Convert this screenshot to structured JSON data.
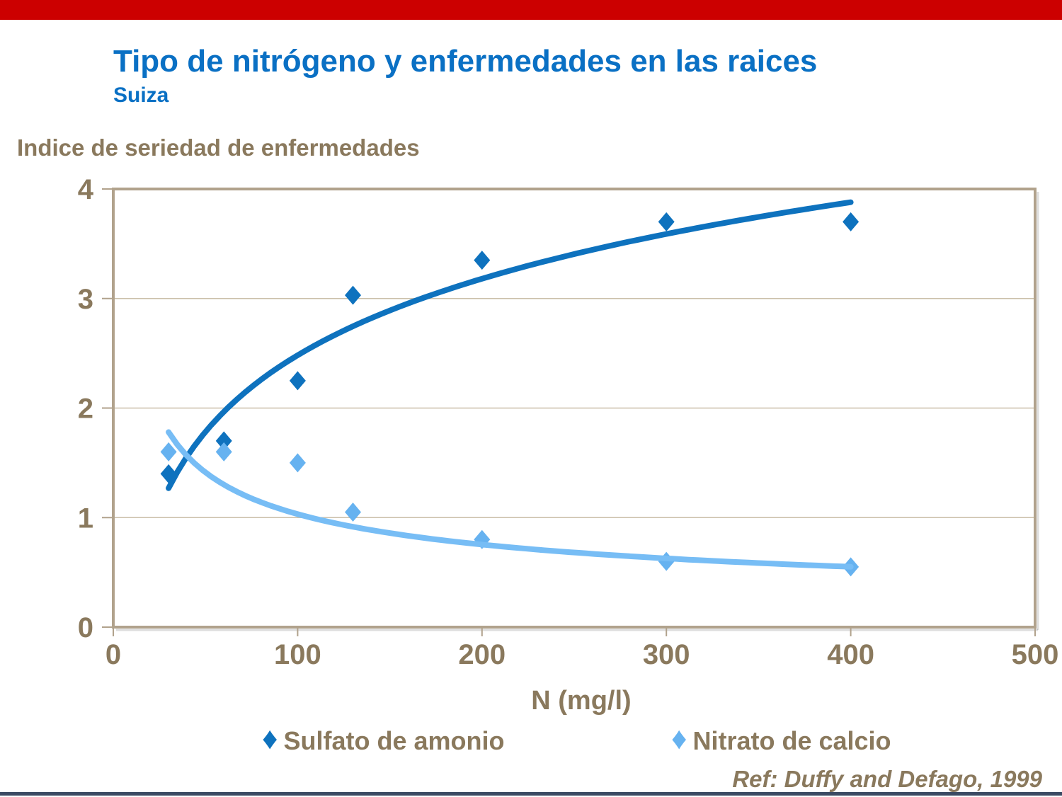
{
  "slide": {
    "title": "Tipo de nitrógeno y enfermedades en las raices",
    "subtitle": "Suiza",
    "reference": "Ref: Duffy and Defago, 1999"
  },
  "colors": {
    "top_bar_red": "#CC0000",
    "title_blue": "#0A70C4",
    "text_brown": "#8A795D",
    "frame_tan": "#B1A28C",
    "gridline_tan": "#CBBFA9",
    "sulfato_dark_blue": "#0E72BE",
    "nitrato_light_blue": "#66B2F0",
    "bottom_line_navy": "#3B4A63"
  },
  "chart_data": {
    "type": "scatter",
    "title": "Tipo de nitrógeno y enfermedades en las raices",
    "subtitle": "Suiza",
    "ylabel": "Indice de seriedad de enfermedades",
    "xlabel": "N (mg/l)",
    "xlim": [
      0,
      500
    ],
    "ylim": [
      0,
      4
    ],
    "x_ticks": [
      0,
      100,
      200,
      300,
      400,
      500
    ],
    "y_ticks": [
      0,
      1,
      2,
      3,
      4
    ],
    "grid": "horizontal",
    "legend_position": "bottom",
    "style": {
      "frame": "#B1A28C",
      "gridline": "#CBBFA9",
      "tick": "#B1A28C"
    },
    "series": [
      {
        "name": "Sulfato de amonio",
        "marker": "diamond",
        "marker_color": "#0E72BE",
        "line_color": "#0E72BE",
        "points": [
          [
            30,
            1.4
          ],
          [
            60,
            1.7
          ],
          [
            100,
            2.25
          ],
          [
            130,
            3.03
          ],
          [
            200,
            3.35
          ],
          [
            300,
            3.7
          ],
          [
            400,
            3.7
          ]
        ],
        "trendline": {
          "type": "log",
          "a": -2.16,
          "b": 1.008,
          "range": [
            30,
            400
          ]
        }
      },
      {
        "name": "Nitrato de calcio",
        "marker": "diamond",
        "marker_color": "#66B2F0",
        "line_color": "#77BDF5",
        "points": [
          [
            30,
            1.6
          ],
          [
            60,
            1.6
          ],
          [
            100,
            1.5
          ],
          [
            130,
            1.05
          ],
          [
            200,
            0.8
          ],
          [
            300,
            0.6
          ],
          [
            400,
            0.55
          ]
        ],
        "trendline": {
          "type": "power",
          "c": 8.31,
          "k": -0.453,
          "range": [
            30,
            400
          ]
        }
      }
    ],
    "footnote": "Ref: Duffy and Defago, 1999"
  }
}
